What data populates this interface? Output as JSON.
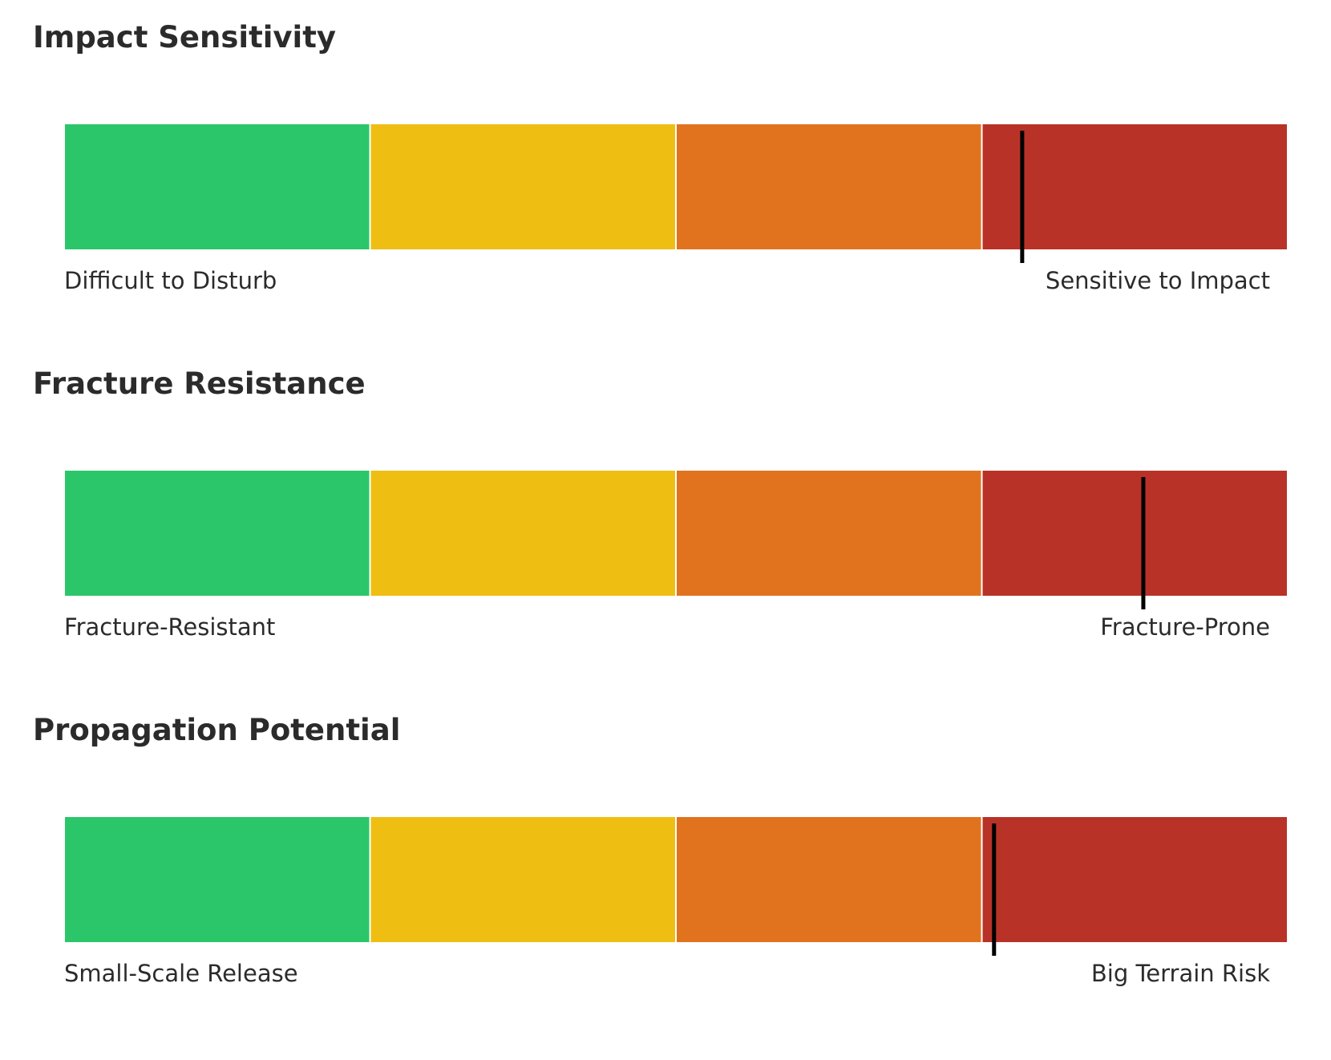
{
  "chart_data": {
    "type": "bar",
    "colors": [
      "#2bc66a",
      "#efbe13",
      "#e1731f",
      "#b83228"
    ],
    "marker_color": "#000000",
    "segments": 4,
    "range": [
      0,
      1
    ],
    "scales": [
      {
        "title": "Impact Sensitivity",
        "low_label": "Difficult to Disturb",
        "high_label": "Sensitive to Impact",
        "value": 0.783
      },
      {
        "title": "Fracture Resistance",
        "low_label": "Fracture-Resistant",
        "high_label": "Fracture-Prone",
        "value": 0.882
      },
      {
        "title": "Propagation Potential",
        "low_label": "Small-Scale Release",
        "high_label": "Big Terrain Risk",
        "value": 0.76
      }
    ]
  }
}
